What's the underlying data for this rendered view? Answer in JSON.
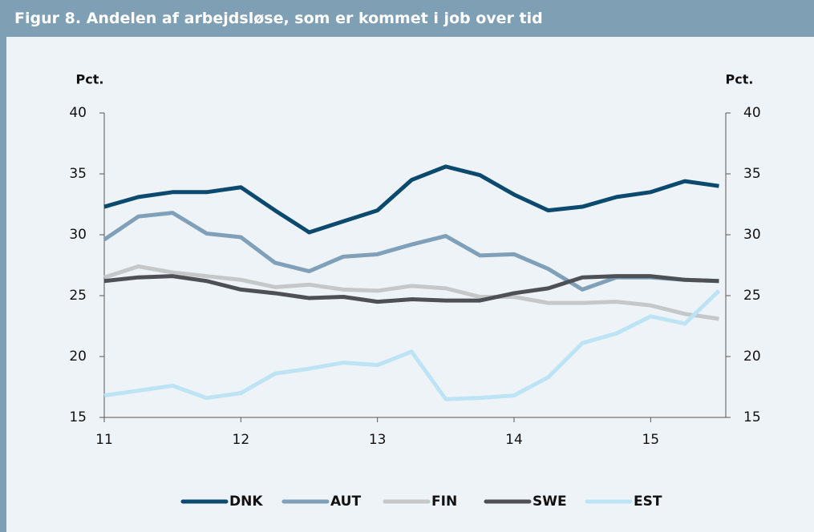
{
  "chart_data": {
    "type": "line",
    "title": "Figur 8. Andelen af arbejdsløse, som er kommet i job over tid",
    "y_label": "Pct.",
    "y2_label": "Pct.",
    "x": [
      11,
      11.25,
      11.5,
      11.75,
      12,
      12.25,
      12.5,
      12.75,
      13,
      13.25,
      13.5,
      13.75,
      14,
      14.25,
      14.5,
      14.75,
      15,
      15.25,
      15.5
    ],
    "xlim": [
      11,
      15.55
    ],
    "xticks": [
      11,
      12,
      13,
      14,
      15
    ],
    "ylim": [
      15,
      40
    ],
    "yticks": [
      15,
      20,
      25,
      30,
      35,
      40
    ],
    "y2lim": [
      15,
      40
    ],
    "y2ticks": [
      15,
      20,
      25,
      30,
      35,
      40
    ],
    "legend": "bottom",
    "series": [
      {
        "name": "DNK",
        "color": "#0b4a6e",
        "values": [
          32.3,
          33.1,
          33.5,
          33.5,
          33.9,
          32.0,
          30.2,
          31.1,
          32.0,
          34.5,
          35.6,
          34.9,
          33.3,
          32.0,
          32.3,
          33.1,
          33.5,
          34.4,
          34.0
        ]
      },
      {
        "name": "AUT",
        "color": "#7fa0b8",
        "values": [
          29.6,
          31.5,
          31.8,
          30.1,
          29.8,
          27.7,
          27.0,
          28.2,
          28.4,
          29.2,
          29.9,
          28.3,
          28.4,
          27.2,
          25.5,
          26.5,
          26.5,
          26.3,
          26.2
        ]
      },
      {
        "name": "FIN",
        "color": "#c4c8ca",
        "values": [
          26.5,
          27.4,
          26.9,
          26.6,
          26.3,
          25.7,
          25.9,
          25.5,
          25.4,
          25.8,
          25.6,
          24.9,
          24.9,
          24.4,
          24.4,
          24.5,
          24.2,
          23.5,
          23.1
        ]
      },
      {
        "name": "SWE",
        "color": "#4d5156",
        "values": [
          26.2,
          26.5,
          26.6,
          26.2,
          25.5,
          25.2,
          24.8,
          24.9,
          24.5,
          24.7,
          24.6,
          24.6,
          25.2,
          25.6,
          26.5,
          26.6,
          26.6,
          26.3,
          26.2
        ]
      },
      {
        "name": "EST",
        "color": "#bde4f5",
        "values": [
          16.8,
          17.2,
          17.6,
          16.6,
          17.0,
          18.6,
          19.0,
          19.5,
          19.3,
          20.4,
          16.5,
          16.6,
          16.8,
          18.3,
          21.1,
          21.9,
          23.3,
          22.7,
          25.4
        ]
      }
    ]
  }
}
